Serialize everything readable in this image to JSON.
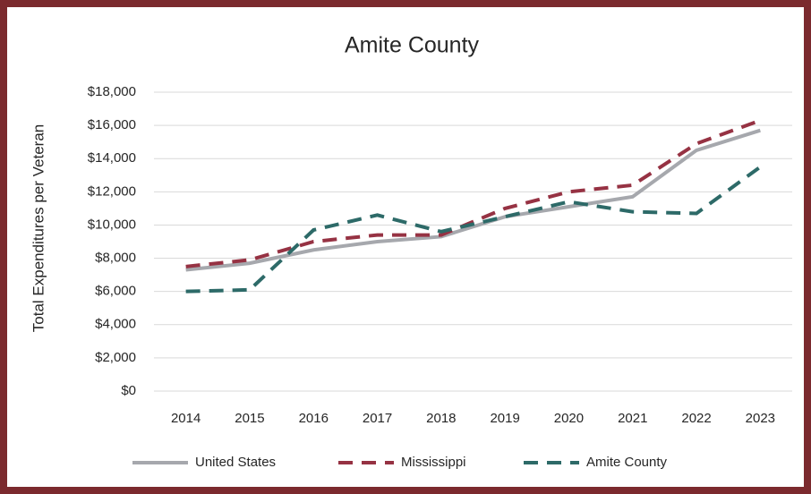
{
  "chart_data": {
    "type": "line",
    "title": "Amite County",
    "ylabel": "Total Expenditures per Veteran",
    "categories": [
      "2014",
      "2015",
      "2016",
      "2017",
      "2018",
      "2019",
      "2020",
      "2021",
      "2022",
      "2023"
    ],
    "series": [
      {
        "name": "United States",
        "color": "#a6a8ad",
        "dash": "solid",
        "values": [
          7300,
          7700,
          8500,
          9000,
          9300,
          10500,
          11100,
          11700,
          14500,
          15700
        ]
      },
      {
        "name": "Mississippi",
        "color": "#963243",
        "dash": "dashed",
        "values": [
          7500,
          7900,
          9000,
          9400,
          9400,
          11000,
          12000,
          12400,
          14900,
          16300
        ]
      },
      {
        "name": "Amite County",
        "color": "#2d6a68",
        "dash": "dashed",
        "values": [
          6000,
          6100,
          9700,
          10600,
          9600,
          10500,
          11400,
          10800,
          10700,
          13500
        ]
      }
    ],
    "ylim": [
      0,
      18000
    ],
    "yticks": [
      {
        "value": 0,
        "label": "$0"
      },
      {
        "value": 2000,
        "label": "$2,000"
      },
      {
        "value": 4000,
        "label": "$4,000"
      },
      {
        "value": 6000,
        "label": "$6,000"
      },
      {
        "value": 8000,
        "label": "$8,000"
      },
      {
        "value": 10000,
        "label": "$10,000"
      },
      {
        "value": 12000,
        "label": "$12,000"
      },
      {
        "value": 14000,
        "label": "$14,000"
      },
      {
        "value": 16000,
        "label": "$16,000"
      },
      {
        "value": 18000,
        "label": "$18,000"
      }
    ],
    "grid": true,
    "legend": "bottom"
  }
}
